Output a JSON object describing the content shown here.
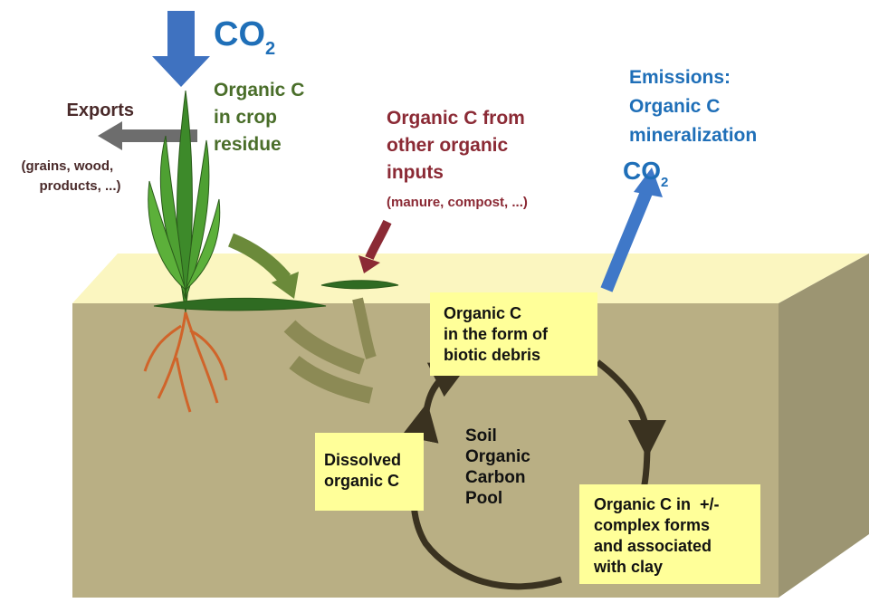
{
  "co2_input": {
    "main": "CO",
    "sub": "2"
  },
  "crop_residue": {
    "lines": [
      "Organic C",
      "in crop",
      "residue"
    ]
  },
  "exports": {
    "title": "Exports",
    "lines": [
      "(grains, wood,",
      "products, ...)"
    ]
  },
  "other_inputs": {
    "lines": [
      "Organic C from",
      "other organic",
      "inputs"
    ],
    "note": "(manure, compost, ...)"
  },
  "emissions": {
    "lines": [
      "Emissions:",
      "Organic C",
      "mineralization"
    ],
    "co2": {
      "main": "CO",
      "sub": "2"
    }
  },
  "pool": {
    "lines": [
      "Soil",
      "Organic",
      "Carbon",
      "Pool"
    ]
  },
  "boxes": [
    {
      "lines": [
        "Organic C",
        "in the form of",
        "biotic debris"
      ]
    },
    {
      "lines": [
        "Dissolved",
        "organic C"
      ]
    },
    {
      "lines": [
        "Organic C in  +/-",
        "complex forms",
        "and associated",
        "with clay"
      ]
    }
  ]
}
